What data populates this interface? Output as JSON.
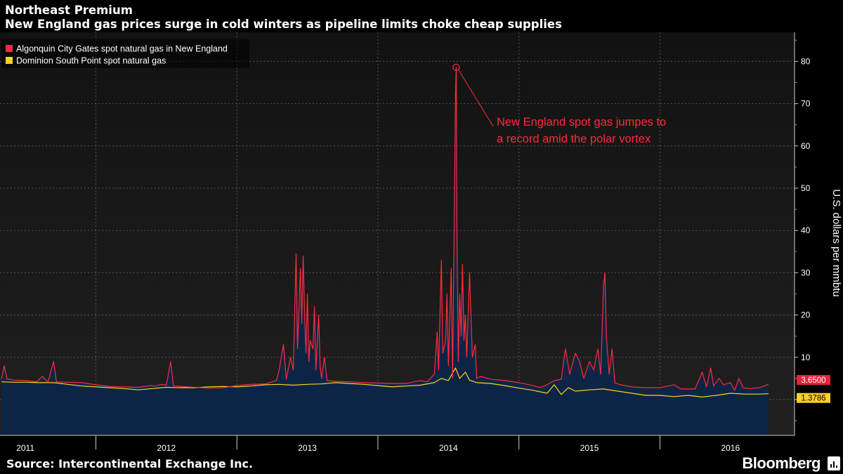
{
  "header": {
    "title": "Northeast Premium",
    "subtitle": "New England gas prices surge in cold winters as pipeline limits choke cheap supplies"
  },
  "footer": {
    "source": "Source: Intercontinental Exchange Inc.",
    "brand": "Bloomberg"
  },
  "colors": {
    "background": "#000000",
    "plot_top": "#151515",
    "plot_bottom": "#1e1e1e",
    "grid": "#555555",
    "area_fill": "#0d2545",
    "algonquin": "#ff2a3d",
    "dominion": "#ffd21f",
    "axis_text": "#ffffff"
  },
  "chart_data": {
    "type": "line",
    "title": "Northeast Premium",
    "subtitle": "New England gas prices surge in cold winters as pipeline limits choke cheap supplies",
    "ylabel": "U.S. dollars per mmbtu",
    "xlabel": "",
    "ylim": [
      -7,
      86
    ],
    "yticks": [
      0,
      10,
      20,
      30,
      40,
      50,
      60,
      70,
      80
    ],
    "x_unit": "year (decimal)",
    "xlim": [
      2010.83,
      2016.3
    ],
    "xtick_labels": [
      "2011",
      "2012",
      "2013",
      "2014",
      "2015",
      "2016"
    ],
    "xtick_label_positions": [
      2011.0,
      2012.0,
      2013.0,
      2014.0,
      2015.0,
      2016.0
    ],
    "xtick_separators": [
      2011.5,
      2012.5,
      2013.5,
      2014.5,
      2015.5
    ],
    "grid": true,
    "legend": "top-left",
    "series": [
      {
        "name": "Algonquin City Gates spot natural gas in New England",
        "color": "#ff2a3d",
        "last_value_label": "3.6500",
        "points": [
          [
            2010.83,
            4.8
          ],
          [
            2010.85,
            8.0
          ],
          [
            2010.87,
            4.9
          ],
          [
            2010.92,
            4.6
          ],
          [
            2011.0,
            4.5
          ],
          [
            2011.08,
            4.2
          ],
          [
            2011.12,
            5.5
          ],
          [
            2011.16,
            4.1
          ],
          [
            2011.2,
            9.0
          ],
          [
            2011.22,
            4.2
          ],
          [
            2011.3,
            4.1
          ],
          [
            2011.4,
            4.0
          ],
          [
            2011.5,
            3.5
          ],
          [
            2011.6,
            3.1
          ],
          [
            2011.7,
            3.0
          ],
          [
            2011.8,
            2.9
          ],
          [
            2011.88,
            3.3
          ],
          [
            2011.92,
            3.2
          ],
          [
            2011.97,
            3.6
          ],
          [
            2012.0,
            3.4
          ],
          [
            2012.03,
            9.0
          ],
          [
            2012.05,
            3.2
          ],
          [
            2012.1,
            3.1
          ],
          [
            2012.14,
            3.0
          ],
          [
            2012.2,
            2.9
          ],
          [
            2012.3,
            2.7
          ],
          [
            2012.4,
            2.8
          ],
          [
            2012.5,
            3.3
          ],
          [
            2012.6,
            3.6
          ],
          [
            2012.7,
            3.7
          ],
          [
            2012.78,
            4.5
          ],
          [
            2012.8,
            7.0
          ],
          [
            2012.83,
            13.0
          ],
          [
            2012.85,
            4.8
          ],
          [
            2012.88,
            10.0
          ],
          [
            2012.9,
            7.0
          ],
          [
            2012.92,
            34.5
          ],
          [
            2012.93,
            12.0
          ],
          [
            2012.95,
            31.0
          ],
          [
            2012.96,
            18.0
          ],
          [
            2012.97,
            34.0
          ],
          [
            2012.98,
            20.0
          ],
          [
            2012.99,
            11.0
          ],
          [
            2013.0,
            25.0
          ],
          [
            2013.01,
            9.0
          ],
          [
            2013.02,
            14.0
          ],
          [
            2013.04,
            12.0
          ],
          [
            2013.05,
            22.0
          ],
          [
            2013.06,
            7.0
          ],
          [
            2013.08,
            20.0
          ],
          [
            2013.09,
            8.0
          ],
          [
            2013.1,
            5.0
          ],
          [
            2013.12,
            10.0
          ],
          [
            2013.14,
            4.5
          ],
          [
            2013.2,
            4.3
          ],
          [
            2013.3,
            4.2
          ],
          [
            2013.4,
            4.0
          ],
          [
            2013.5,
            3.9
          ],
          [
            2013.6,
            3.8
          ],
          [
            2013.7,
            3.8
          ],
          [
            2013.8,
            4.5
          ],
          [
            2013.85,
            4.2
          ],
          [
            2013.9,
            6.0
          ],
          [
            2013.92,
            16.0
          ],
          [
            2013.93,
            7.0
          ],
          [
            2013.95,
            33.0
          ],
          [
            2013.96,
            11.0
          ],
          [
            2013.98,
            14.0
          ],
          [
            2013.99,
            25.0
          ],
          [
            2014.0,
            8.0
          ],
          [
            2014.02,
            31.0
          ],
          [
            2014.03,
            5.0
          ],
          [
            2014.05,
            72.0
          ],
          [
            2014.055,
            78.6
          ],
          [
            2014.06,
            40.0
          ],
          [
            2014.07,
            9.0
          ],
          [
            2014.08,
            25.0
          ],
          [
            2014.09,
            15.0
          ],
          [
            2014.1,
            32.0
          ],
          [
            2014.11,
            14.0
          ],
          [
            2014.12,
            20.0
          ],
          [
            2014.13,
            10.0
          ],
          [
            2014.15,
            30.0
          ],
          [
            2014.17,
            10.0
          ],
          [
            2014.19,
            13.0
          ],
          [
            2014.2,
            5.0
          ],
          [
            2014.23,
            5.5
          ],
          [
            2014.3,
            4.8
          ],
          [
            2014.4,
            4.5
          ],
          [
            2014.5,
            4.0
          ],
          [
            2014.6,
            3.3
          ],
          [
            2014.65,
            2.8
          ],
          [
            2014.7,
            3.5
          ],
          [
            2014.75,
            4.5
          ],
          [
            2014.8,
            4.8
          ],
          [
            2014.83,
            12.0
          ],
          [
            2014.86,
            6.0
          ],
          [
            2014.9,
            11.0
          ],
          [
            2014.93,
            9.0
          ],
          [
            2014.96,
            5.0
          ],
          [
            2015.0,
            9.0
          ],
          [
            2015.03,
            7.0
          ],
          [
            2015.06,
            12.0
          ],
          [
            2015.08,
            6.0
          ],
          [
            2015.1,
            27.0
          ],
          [
            2015.11,
            30.0
          ],
          [
            2015.12,
            15.0
          ],
          [
            2015.14,
            6.0
          ],
          [
            2015.16,
            12.0
          ],
          [
            2015.18,
            4.0
          ],
          [
            2015.22,
            3.5
          ],
          [
            2015.3,
            3.0
          ],
          [
            2015.4,
            2.8
          ],
          [
            2015.5,
            2.8
          ],
          [
            2015.6,
            3.5
          ],
          [
            2015.65,
            2.5
          ],
          [
            2015.75,
            2.5
          ],
          [
            2015.8,
            6.5
          ],
          [
            2015.83,
            3.0
          ],
          [
            2015.86,
            7.5
          ],
          [
            2015.88,
            3.2
          ],
          [
            2015.92,
            5.0
          ],
          [
            2015.95,
            3.5
          ],
          [
            2016.0,
            4.0
          ],
          [
            2016.03,
            2.2
          ],
          [
            2016.06,
            5.0
          ],
          [
            2016.09,
            2.8
          ],
          [
            2016.14,
            2.6
          ],
          [
            2016.2,
            2.8
          ],
          [
            2016.24,
            3.2
          ],
          [
            2016.27,
            3.65
          ]
        ]
      },
      {
        "name": "Dominion South Point spot natural gas",
        "color": "#ffd21f",
        "last_value_label": "1.3786",
        "points": [
          [
            2010.83,
            4.2
          ],
          [
            2010.9,
            4.1
          ],
          [
            2011.0,
            4.1
          ],
          [
            2011.1,
            4.0
          ],
          [
            2011.2,
            4.0
          ],
          [
            2011.3,
            3.6
          ],
          [
            2011.4,
            3.2
          ],
          [
            2011.5,
            3.0
          ],
          [
            2011.6,
            2.8
          ],
          [
            2011.7,
            2.6
          ],
          [
            2011.8,
            2.3
          ],
          [
            2011.9,
            2.6
          ],
          [
            2012.0,
            2.9
          ],
          [
            2012.1,
            2.8
          ],
          [
            2012.2,
            2.8
          ],
          [
            2012.3,
            3.0
          ],
          [
            2012.4,
            3.1
          ],
          [
            2012.5,
            3.0
          ],
          [
            2012.6,
            3.2
          ],
          [
            2012.7,
            3.5
          ],
          [
            2012.8,
            3.6
          ],
          [
            2012.9,
            3.4
          ],
          [
            2013.0,
            3.6
          ],
          [
            2013.1,
            3.7
          ],
          [
            2013.2,
            4.0
          ],
          [
            2013.3,
            3.8
          ],
          [
            2013.4,
            3.6
          ],
          [
            2013.5,
            3.3
          ],
          [
            2013.6,
            3.0
          ],
          [
            2013.7,
            3.2
          ],
          [
            2013.8,
            3.4
          ],
          [
            2013.9,
            4.0
          ],
          [
            2013.95,
            5.0
          ],
          [
            2014.0,
            4.5
          ],
          [
            2014.05,
            7.5
          ],
          [
            2014.08,
            5.0
          ],
          [
            2014.12,
            6.5
          ],
          [
            2014.15,
            4.6
          ],
          [
            2014.2,
            4.0
          ],
          [
            2014.3,
            3.8
          ],
          [
            2014.4,
            3.3
          ],
          [
            2014.5,
            2.7
          ],
          [
            2014.6,
            2.2
          ],
          [
            2014.7,
            1.5
          ],
          [
            2014.75,
            3.5
          ],
          [
            2014.8,
            1.2
          ],
          [
            2014.85,
            2.8
          ],
          [
            2014.9,
            2.0
          ],
          [
            2015.0,
            2.3
          ],
          [
            2015.1,
            2.5
          ],
          [
            2015.2,
            2.0
          ],
          [
            2015.3,
            1.5
          ],
          [
            2015.4,
            1.0
          ],
          [
            2015.5,
            1.0
          ],
          [
            2015.6,
            0.7
          ],
          [
            2015.7,
            1.0
          ],
          [
            2015.8,
            0.6
          ],
          [
            2015.9,
            1.0
          ],
          [
            2016.0,
            1.5
          ],
          [
            2016.1,
            1.3
          ],
          [
            2016.2,
            1.3
          ],
          [
            2016.27,
            1.3786
          ]
        ]
      }
    ],
    "annotations": [
      {
        "text_line1": "New England spot gas jumpes to",
        "text_line2": "a record amid the polar vortex",
        "point": [
          2014.055,
          78.6
        ]
      }
    ]
  }
}
